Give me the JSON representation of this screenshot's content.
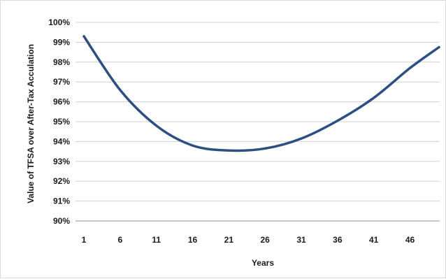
{
  "chart_data": {
    "type": "line",
    "title": "",
    "xlabel": "Years",
    "ylabel": "Value of TFSA over After-Tax Acculation",
    "x_tick_labels": [
      "1",
      "6",
      "11",
      "16",
      "21",
      "26",
      "31",
      "36",
      "41",
      "46"
    ],
    "y_tick_labels": [
      "90%",
      "91%",
      "92%",
      "93%",
      "94%",
      "95%",
      "96%",
      "97%",
      "98%",
      "99%",
      "100%"
    ],
    "xlim": [
      1,
      50
    ],
    "ylim": [
      0.9,
      1.0
    ],
    "grid": "horizontal",
    "legend": "none",
    "line_color": "#2b4f83",
    "series": [
      {
        "x": [
          1,
          6,
          11,
          16,
          21,
          26,
          31,
          36,
          41,
          46,
          50
        ],
        "values": [
          0.993,
          0.966,
          0.948,
          0.938,
          0.9355,
          0.9365,
          0.9415,
          0.9505,
          0.962,
          0.977,
          0.9875
        ]
      }
    ]
  }
}
